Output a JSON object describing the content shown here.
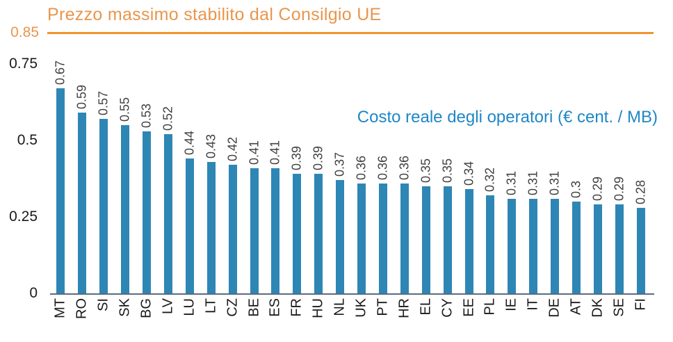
{
  "chart": {
    "title": "Prezzo massimo stabilito dal Consilgio UE",
    "annotation": "Costo reale degli operatori (€ cent. / MB)",
    "reference_label": "0.85"
  },
  "chart_data": {
    "type": "bar",
    "title": "Prezzo massimo stabilito dal Consilgio UE",
    "annotation": "Costo reale degli operatori (€ cent. / MB)",
    "xlabel": "",
    "ylabel": "",
    "ylim": [
      0,
      0.85
    ],
    "grid": false,
    "legend_position": "none",
    "categories": [
      "MT",
      "RO",
      "SI",
      "SK",
      "BG",
      "LV",
      "LU",
      "LT",
      "CZ",
      "BE",
      "ES",
      "FR",
      "HU",
      "NL",
      "UK",
      "PT",
      "HR",
      "EL",
      "CY",
      "EE",
      "PL",
      "IE",
      "IT",
      "DE",
      "AT",
      "DK",
      "SE",
      "FI"
    ],
    "values": [
      0.67,
      0.59,
      0.57,
      0.55,
      0.53,
      0.52,
      0.44,
      0.43,
      0.42,
      0.41,
      0.41,
      0.39,
      0.39,
      0.37,
      0.36,
      0.36,
      0.36,
      0.35,
      0.35,
      0.34,
      0.32,
      0.31,
      0.31,
      0.31,
      0.3,
      0.29,
      0.29,
      0.28
    ],
    "value_labels": [
      "0.67",
      "0.59",
      "0.57",
      "0.55",
      "0.53",
      "0.52",
      "0.44",
      "0.43",
      "0.42",
      "0.41",
      "0.41",
      "0.39",
      "0.39",
      "0.37",
      "0.36",
      "0.36",
      "0.36",
      "0.35",
      "0.35",
      "0.34",
      "0.32",
      "0.31",
      "0.31",
      "0.31",
      "0.3",
      "0.29",
      "0.29",
      "0.28"
    ],
    "reference_line": {
      "value": 0.85,
      "label": "0.85"
    },
    "yticks": [
      {
        "label": "0",
        "value": 0
      },
      {
        "label": "0.25",
        "value": 0.25
      },
      {
        "label": "0.5",
        "value": 0.5
      },
      {
        "label": "0.75",
        "value": 0.75
      }
    ],
    "colors": {
      "bar": "#2E86B5",
      "reference_line": "#F0932D",
      "title": "#E8964C",
      "annotation": "#1F87C5",
      "value_label": "#404040",
      "category_label": "#1A1A1A",
      "ytick_label": "#1A1A1A",
      "axis_line": "#5A6B7C"
    }
  }
}
